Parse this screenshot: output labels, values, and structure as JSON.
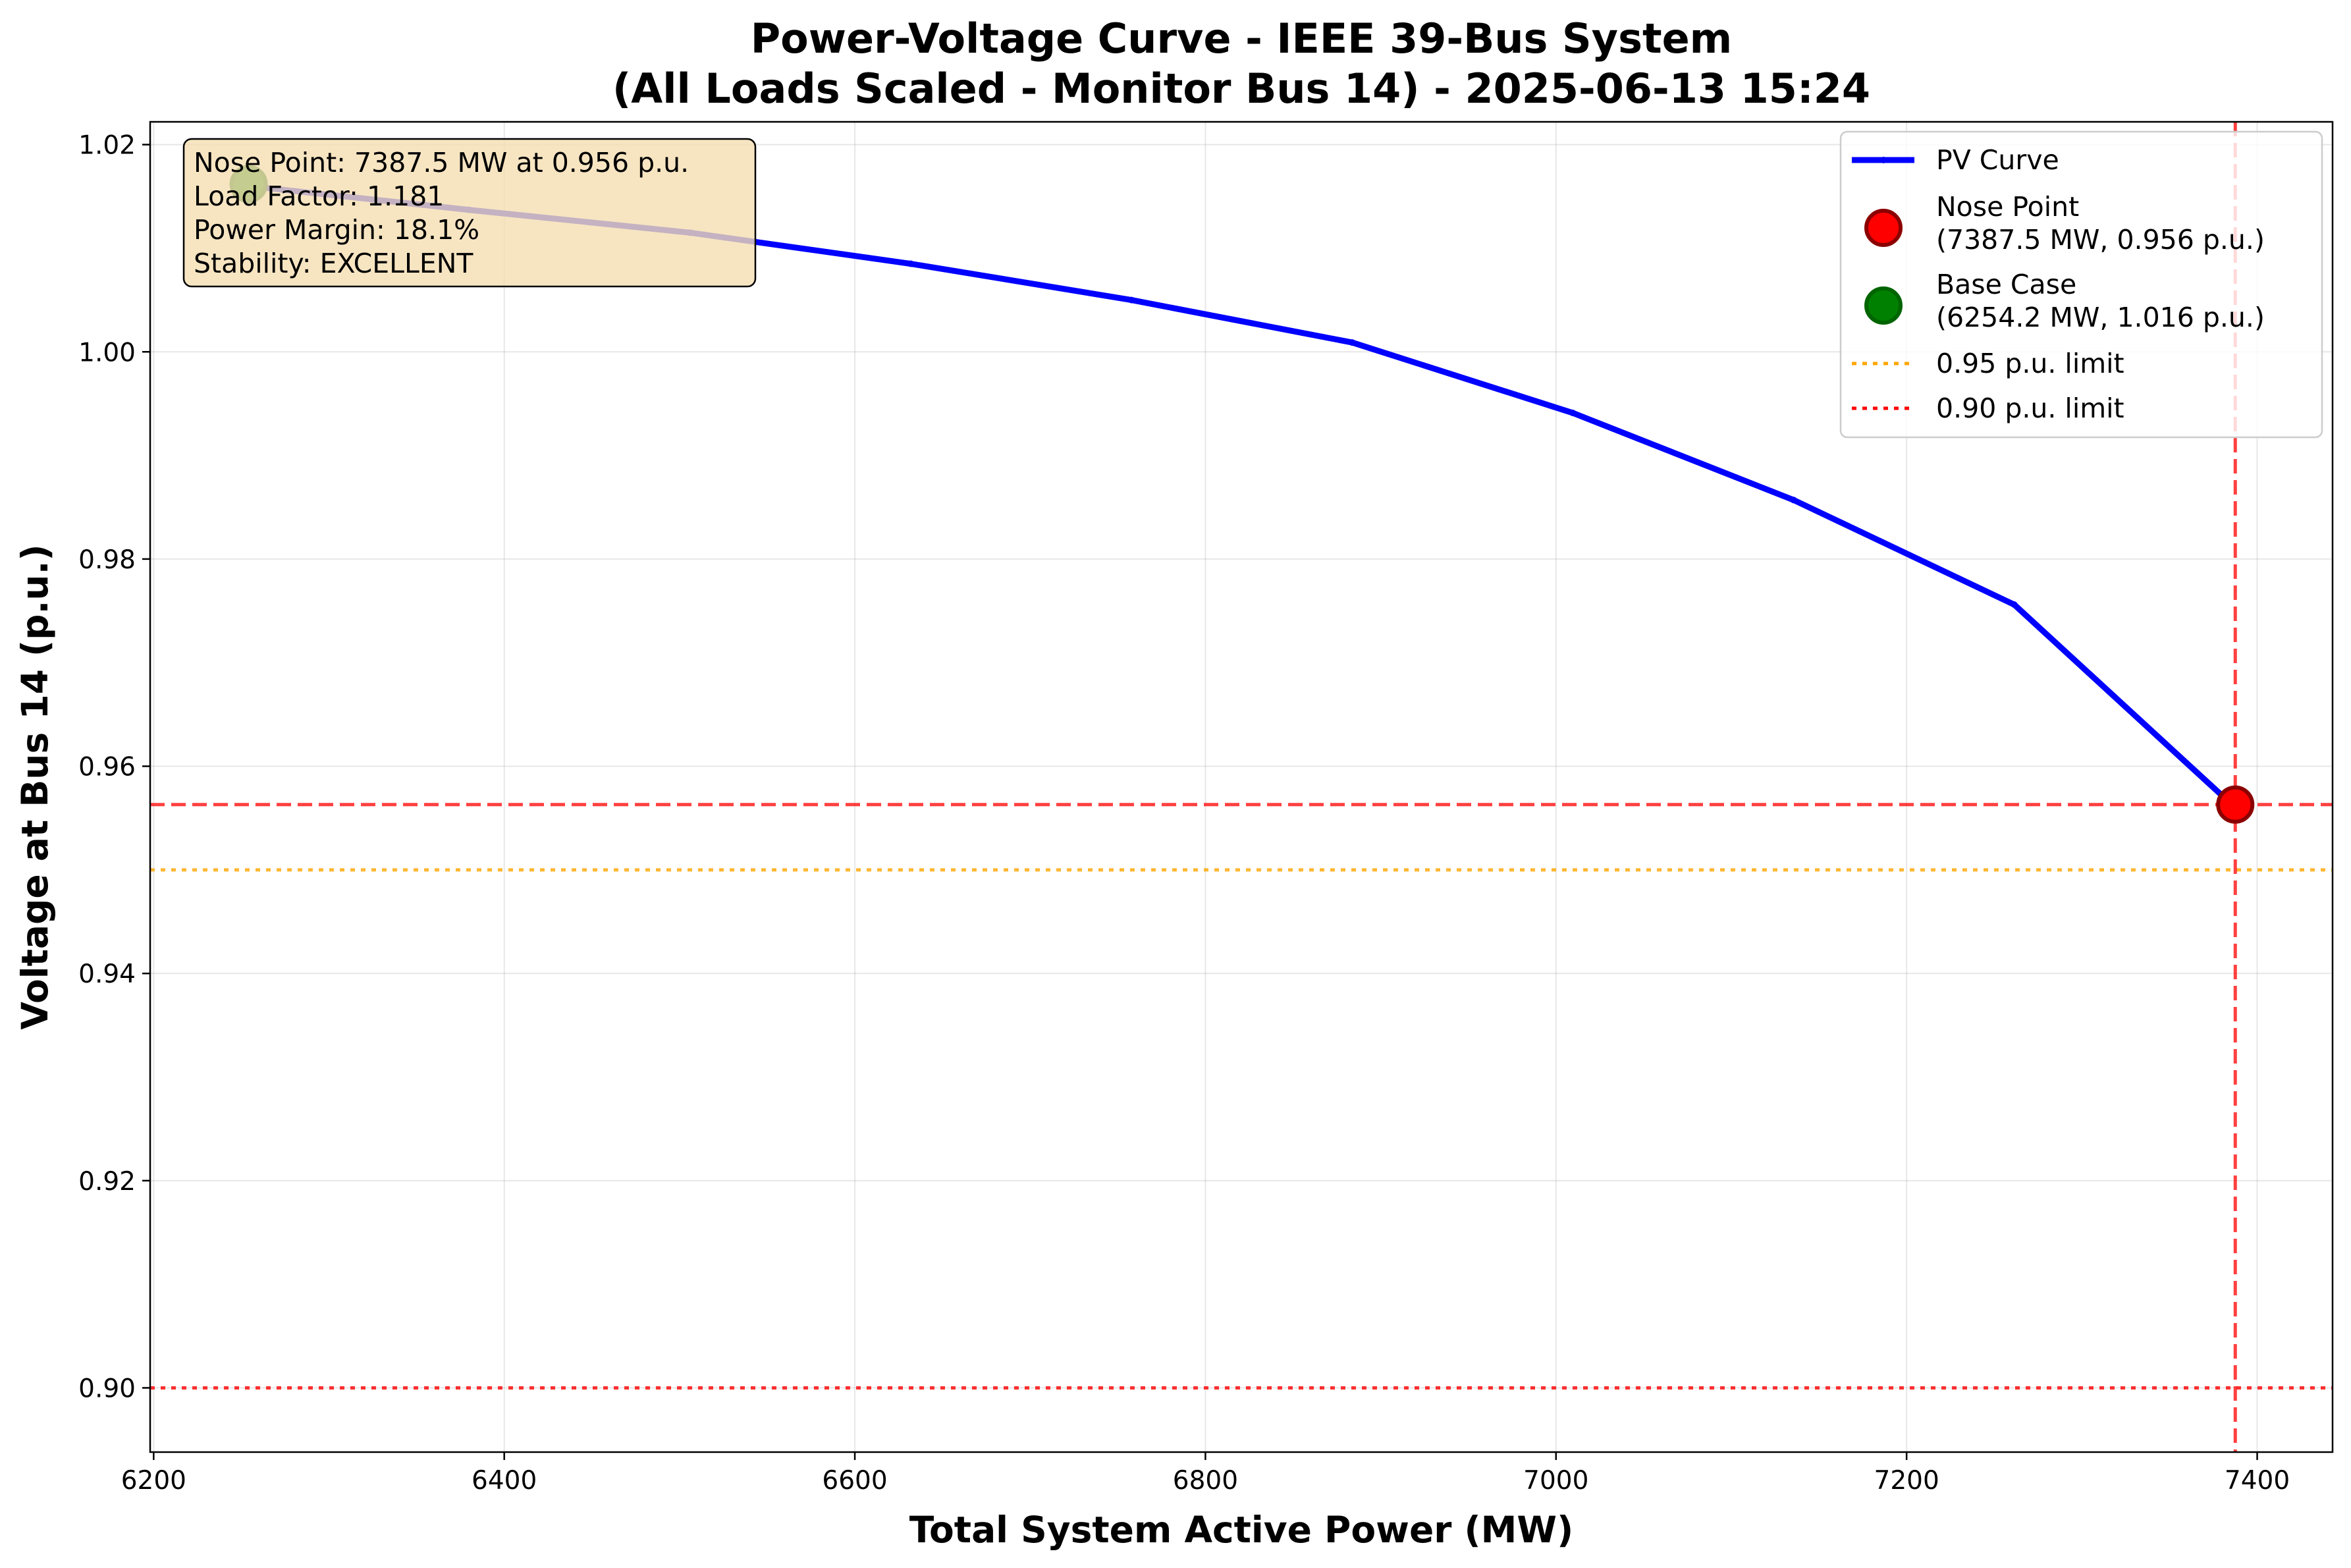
{
  "chart_data": {
    "type": "line",
    "title": [
      "Power-Voltage Curve - IEEE 39-Bus System",
      "(All Loads Scaled - Monitor Bus 14) - 2025-06-13 15:24"
    ],
    "xlabel": "Total System Active Power (MW)",
    "ylabel": "Voltage at Bus 14 (p.u.)",
    "xlim": [
      6198,
      7443
    ],
    "ylim": [
      0.8938,
      1.0222
    ],
    "xticks": [
      6200,
      6400,
      6600,
      6800,
      7000,
      7200,
      7400
    ],
    "xtick_labels": [
      "6200",
      "6400",
      "6600",
      "6800",
      "7000",
      "7200",
      "7400"
    ],
    "yticks": [
      0.9,
      0.92,
      0.94,
      0.96,
      0.98,
      1.0,
      1.02
    ],
    "ytick_labels": [
      "0.90",
      "0.92",
      "0.94",
      "0.96",
      "0.98",
      "1.00",
      "1.02"
    ],
    "grid": true,
    "legend_position": "top-right",
    "series": [
      {
        "name": "PV Curve",
        "color": "#0000ff",
        "x": [
          6254.2,
          6380.1,
          6506.0,
          6631.9,
          6757.8,
          6883.7,
          7009.6,
          7135.5,
          7261.4,
          7387.5
        ],
        "y": [
          1.016,
          1.0137,
          1.0115,
          1.0085,
          1.005,
          1.0009,
          0.9941,
          0.9857,
          0.9756,
          0.956
        ]
      }
    ],
    "points": [
      {
        "name": "Nose Point",
        "legend_detail": "(7387.5 MW, 0.956 p.u.)",
        "x": 7387.5,
        "y": 0.9563,
        "color": "#ff0000",
        "edge_color": "#8b0000"
      },
      {
        "name": "Base Case",
        "legend_detail": "(6254.2 MW, 1.016 p.u.)",
        "x": 6254.2,
        "y": 1.0162,
        "color": "#008000",
        "edge_color": "#006400"
      }
    ],
    "reference_lines": [
      {
        "name": "0.95 p.u. limit",
        "orientation": "horizontal",
        "value": 0.95,
        "color": "#ffa500",
        "style": "dotted"
      },
      {
        "name": "0.90 p.u. limit",
        "orientation": "horizontal",
        "value": 0.9,
        "color": "#ff0000",
        "style": "dotted"
      },
      {
        "orientation": "horizontal",
        "value": 0.9563,
        "color": "#ff0000",
        "style": "dashed"
      },
      {
        "orientation": "vertical",
        "value": 7387.5,
        "color": "#ff0000",
        "style": "dashed"
      }
    ],
    "info_box": {
      "lines": [
        "Nose Point: 7387.5 MW at 0.956 p.u.",
        "Load Factor: 1.181",
        "Power Margin: 18.1%",
        "Stability: EXCELLENT"
      ],
      "background": "#f5deb3",
      "position": "top-left"
    }
  }
}
